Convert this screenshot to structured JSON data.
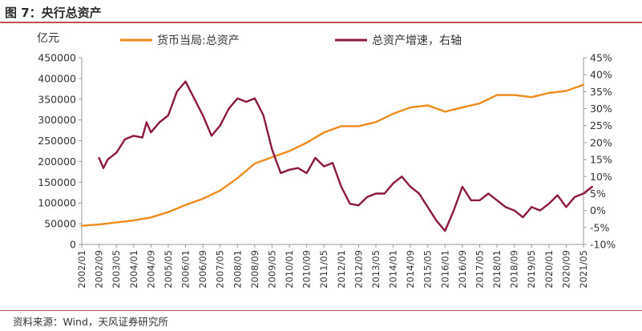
{
  "header": {
    "title": "图 7：央行总资产"
  },
  "footer": {
    "source": "资料来源：Wind，天风证券研究所"
  },
  "colors": {
    "orange": "#ef8a1d",
    "maroon": "#8b1a3c",
    "axis": "#9a9a9a",
    "rule": "#c0504d"
  },
  "chart_data": {
    "type": "line",
    "unit_label": "亿元",
    "x_ticks": [
      "2002/01",
      "2002/09",
      "2003/05",
      "2004/01",
      "2004/09",
      "2005/05",
      "2006/01",
      "2006/09",
      "2007/05",
      "2008/01",
      "2008/09",
      "2009/05",
      "2010/01",
      "2010/09",
      "2011/05",
      "2012/01",
      "2012/09",
      "2013/05",
      "2014/01",
      "2014/09",
      "2015/05",
      "2016/01",
      "2016/09",
      "2017/05",
      "2018/01",
      "2018/09",
      "2019/05",
      "2020/01",
      "2020/09",
      "2021/05"
    ],
    "y_left": {
      "min": 0,
      "max": 450000,
      "ticks": [
        "0",
        "50000",
        "100000",
        "150000",
        "200000",
        "250000",
        "300000",
        "350000",
        "400000",
        "450000"
      ]
    },
    "y_right": {
      "min": -10,
      "max": 45,
      "ticks": [
        "-10%",
        "-5%",
        "0%",
        "5%",
        "10%",
        "15%",
        "20%",
        "25%",
        "30%",
        "35%",
        "40%",
        "45%"
      ]
    },
    "legend": {
      "position": "top"
    },
    "series": [
      {
        "name": "货币当局:总资产",
        "axis": "left",
        "points": [
          [
            "2002/01",
            45000
          ],
          [
            "2002/09",
            48000
          ],
          [
            "2003/05",
            53000
          ],
          [
            "2004/01",
            58000
          ],
          [
            "2004/09",
            65000
          ],
          [
            "2005/05",
            78000
          ],
          [
            "2006/01",
            95000
          ],
          [
            "2006/09",
            110000
          ],
          [
            "2007/05",
            130000
          ],
          [
            "2008/01",
            160000
          ],
          [
            "2008/09",
            195000
          ],
          [
            "2009/05",
            210000
          ],
          [
            "2010/01",
            225000
          ],
          [
            "2010/09",
            245000
          ],
          [
            "2011/05",
            270000
          ],
          [
            "2012/01",
            285000
          ],
          [
            "2012/09",
            285000
          ],
          [
            "2013/05",
            295000
          ],
          [
            "2014/01",
            315000
          ],
          [
            "2014/09",
            330000
          ],
          [
            "2015/05",
            335000
          ],
          [
            "2016/01",
            320000
          ],
          [
            "2016/09",
            330000
          ],
          [
            "2017/05",
            340000
          ],
          [
            "2018/01",
            360000
          ],
          [
            "2018/09",
            360000
          ],
          [
            "2019/05",
            355000
          ],
          [
            "2020/01",
            365000
          ],
          [
            "2020/09",
            370000
          ],
          [
            "2021/05",
            385000
          ]
        ]
      },
      {
        "name": "总资产增速，右轴",
        "axis": "right",
        "points": [
          [
            "2002/09",
            15.5
          ],
          [
            "2002/11",
            12.5
          ],
          [
            "2003/01",
            15
          ],
          [
            "2003/05",
            17
          ],
          [
            "2003/09",
            21
          ],
          [
            "2004/01",
            22
          ],
          [
            "2004/05",
            21.5
          ],
          [
            "2004/07",
            26
          ],
          [
            "2004/09",
            23
          ],
          [
            "2005/01",
            26
          ],
          [
            "2005/05",
            28
          ],
          [
            "2005/09",
            35
          ],
          [
            "2006/01",
            38
          ],
          [
            "2006/05",
            33
          ],
          [
            "2006/09",
            28
          ],
          [
            "2007/01",
            22
          ],
          [
            "2007/05",
            25
          ],
          [
            "2007/09",
            30
          ],
          [
            "2008/01",
            33
          ],
          [
            "2008/05",
            32
          ],
          [
            "2008/09",
            33
          ],
          [
            "2009/01",
            28
          ],
          [
            "2009/05",
            18
          ],
          [
            "2009/09",
            11
          ],
          [
            "2010/01",
            12
          ],
          [
            "2010/05",
            12.5
          ],
          [
            "2010/09",
            11
          ],
          [
            "2011/01",
            15.5
          ],
          [
            "2011/05",
            13
          ],
          [
            "2011/09",
            14
          ],
          [
            "2012/01",
            7
          ],
          [
            "2012/05",
            2
          ],
          [
            "2012/09",
            1.5
          ],
          [
            "2013/01",
            4
          ],
          [
            "2013/05",
            5
          ],
          [
            "2013/09",
            5
          ],
          [
            "2014/01",
            8
          ],
          [
            "2014/05",
            10
          ],
          [
            "2014/09",
            7
          ],
          [
            "2015/01",
            5
          ],
          [
            "2015/05",
            1
          ],
          [
            "2015/09",
            -3
          ],
          [
            "2016/01",
            -6
          ],
          [
            "2016/05",
            0
          ],
          [
            "2016/09",
            7
          ],
          [
            "2017/01",
            3
          ],
          [
            "2017/05",
            3
          ],
          [
            "2017/09",
            5
          ],
          [
            "2018/01",
            3
          ],
          [
            "2018/05",
            1
          ],
          [
            "2018/09",
            0
          ],
          [
            "2019/01",
            -2
          ],
          [
            "2019/05",
            1
          ],
          [
            "2019/09",
            0
          ],
          [
            "2020/01",
            2
          ],
          [
            "2020/05",
            4.5
          ],
          [
            "2020/09",
            1
          ],
          [
            "2021/01",
            4
          ],
          [
            "2021/05",
            5
          ],
          [
            "2021/09",
            7
          ]
        ]
      }
    ]
  }
}
